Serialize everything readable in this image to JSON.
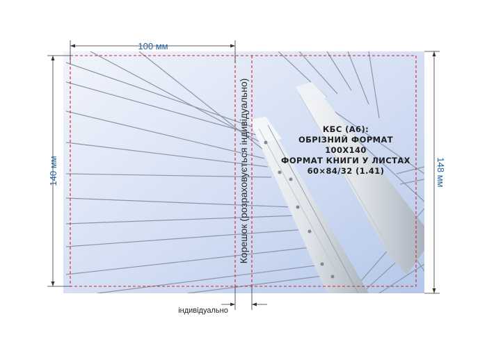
{
  "dimensions": {
    "width_label": "100 мм",
    "height_inner_label": "140 мм",
    "height_outer_label": "148 мм",
    "spine_width_label": "індивідуально"
  },
  "spine": {
    "label": "Корешок (розраховується індивідуально)"
  },
  "info": {
    "line1": "КБС (А6):",
    "line2": "ОБРІЗНИЙ ФОРМАТ",
    "line3": "100Х140",
    "line4": "ФОРМАТ КНИГИ У ЛИСТАХ",
    "line5": "60×84/32 (1.41)"
  },
  "colors": {
    "trim_line": "#d9212b",
    "dimension": "#1f5f9e",
    "sky_light": "#eef2fb",
    "sky_dark": "#b7c9ea"
  }
}
